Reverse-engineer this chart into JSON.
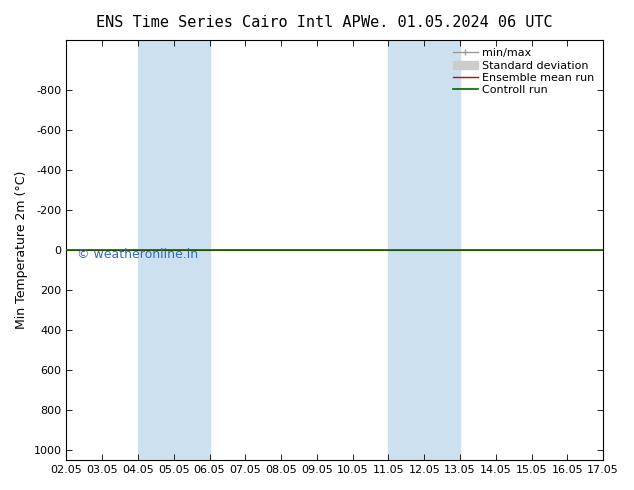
{
  "title_left": "ENS Time Series Cairo Intl AP",
  "title_right": "We. 01.05.2024 06 UTC",
  "ylabel": "Min Temperature 2m (°C)",
  "ylim_bottom": -1050,
  "ylim_top": 1050,
  "yticks": [
    -800,
    -600,
    -400,
    -200,
    0,
    200,
    400,
    600,
    800,
    1000
  ],
  "xtick_labels": [
    "02.05",
    "03.05",
    "04.05",
    "05.05",
    "06.05",
    "07.05",
    "08.05",
    "09.05",
    "10.05",
    "11.05",
    "12.05",
    "13.05",
    "14.05",
    "15.05",
    "16.05",
    "17.05"
  ],
  "xtick_positions": [
    2,
    3,
    4,
    5,
    6,
    7,
    8,
    9,
    10,
    11,
    12,
    13,
    14,
    15,
    16,
    17
  ],
  "shaded_bands": [
    {
      "xstart": 4.0,
      "xend": 6.0
    },
    {
      "xstart": 11.0,
      "xend": 13.0
    }
  ],
  "shaded_color": "#cce0f0",
  "line_red_color": "#cc0000",
  "line_green_color": "#006600",
  "watermark": "© weatheronline.in",
  "watermark_color": "#3366cc",
  "background_color": "#ffffff",
  "plot_bg_color": "#ffffff",
  "legend_minmax_color": "#999999",
  "legend_stddev_color": "#cccccc",
  "figsize": [
    6.34,
    4.9
  ],
  "dpi": 100,
  "title_fontsize": 11,
  "ylabel_fontsize": 9,
  "tick_fontsize": 8,
  "legend_fontsize": 8
}
